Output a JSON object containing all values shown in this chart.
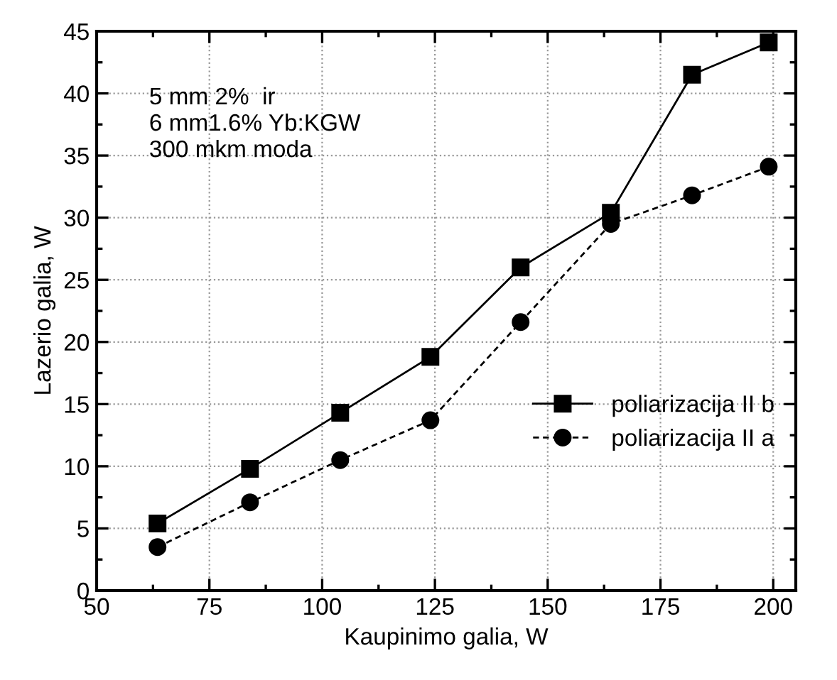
{
  "chart_data": {
    "type": "line",
    "xlabel": "Kaupinimo galia, W",
    "ylabel": "Lazerio galia, W",
    "x": [
      63.5,
      84,
      104,
      124,
      144,
      164,
      182,
      199
    ],
    "series": [
      {
        "name": "poliarizacija II b",
        "color": "#000000",
        "marker": "square",
        "line_style": "solid",
        "values": [
          5.4,
          9.8,
          14.3,
          18.8,
          26,
          30.4,
          41.5,
          44.1
        ]
      },
      {
        "name": "poliarizacija II a",
        "color": "#000000",
        "marker": "circle",
        "line_style": "dashed",
        "values": [
          3.5,
          7.1,
          10.5,
          13.7,
          21.6,
          29.5,
          31.8,
          34.1
        ]
      }
    ],
    "xlim": [
      50,
      205
    ],
    "ylim": [
      0,
      45
    ],
    "xticks": [
      50,
      75,
      100,
      125,
      150,
      175,
      200
    ],
    "yticks": [
      0,
      5,
      10,
      15,
      20,
      25,
      30,
      35,
      40,
      45
    ],
    "grid": true,
    "legend": "right",
    "annotations": [
      "5 mm 2%  ir\n6 mm1.6% Yb:KGW\n300 mkm moda"
    ]
  }
}
